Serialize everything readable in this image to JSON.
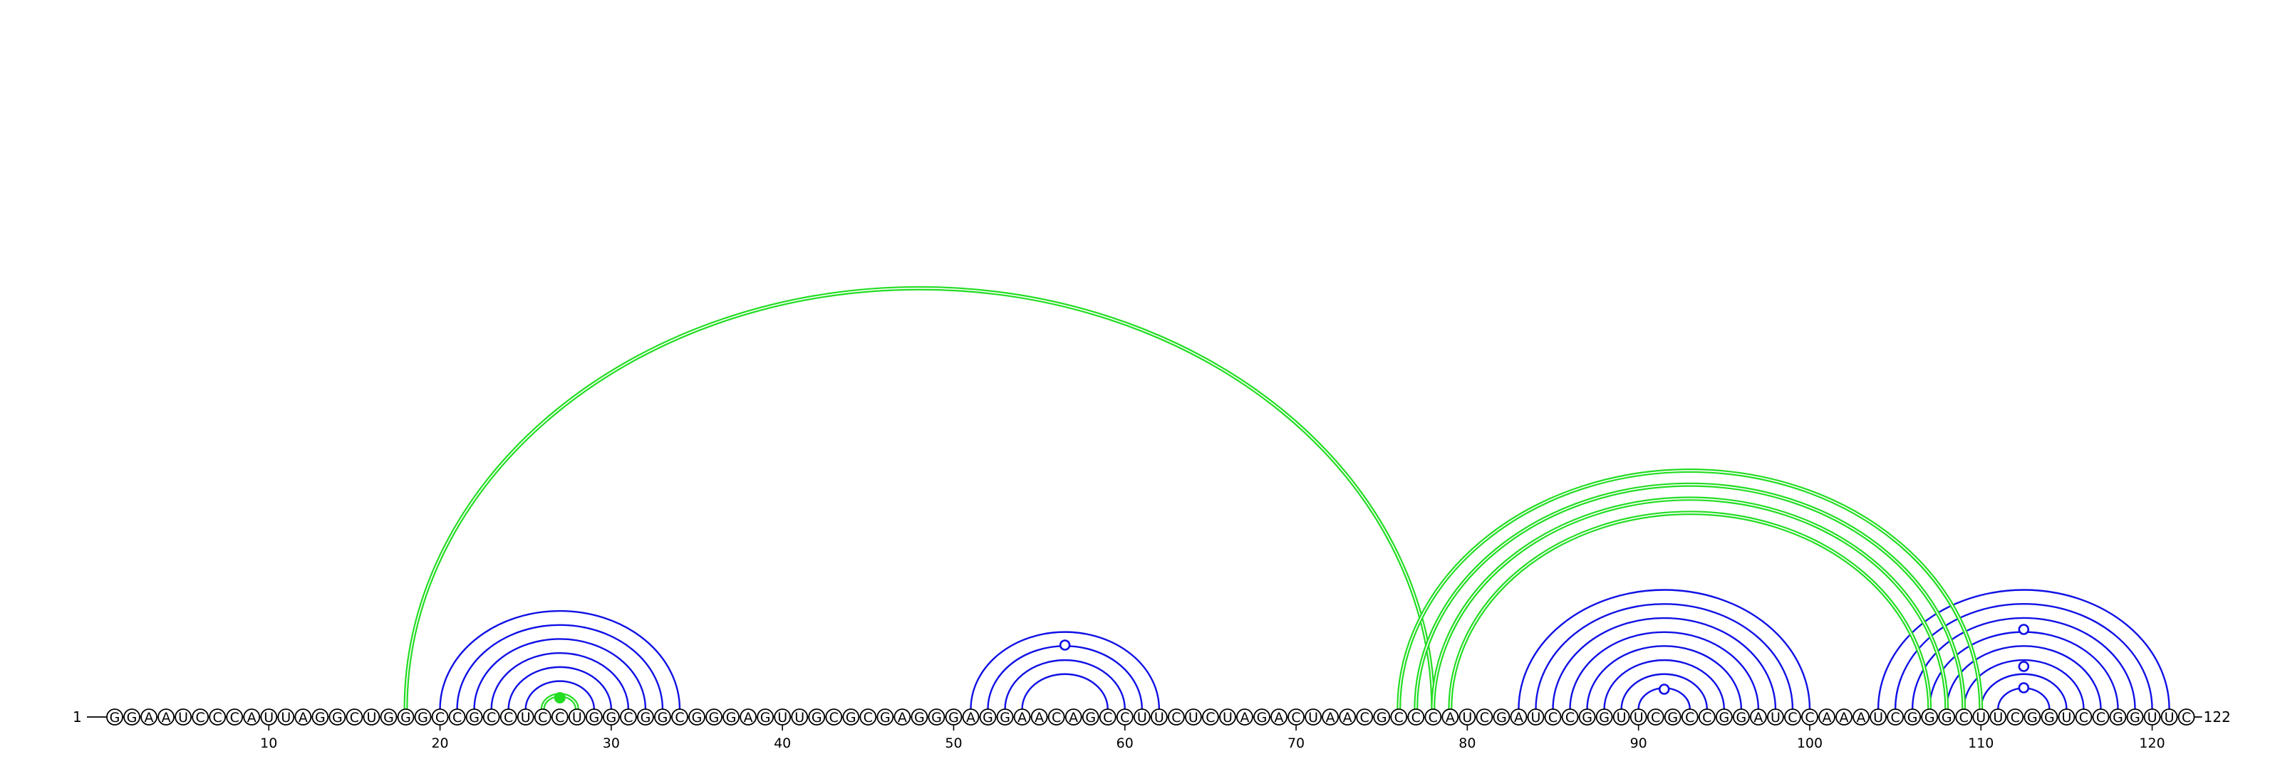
{
  "sequence": "GGAAUCCCAUUAGGCUGGGCCGCCUCCUGGCGGCGGGAGUUGCGCGAGGGAGGAACAGCCUUCUCUAGACUAACGCCCAUCGAUCCGGUUCGCCGGAUCCAAAUCGGGCUUCGGUCCGGUUC",
  "start_label": "1",
  "end_label": "122",
  "ticks": [
    10,
    20,
    30,
    40,
    50,
    60,
    70,
    80,
    90,
    100,
    110,
    120
  ],
  "colors": {
    "pairs": "#1010e6",
    "highlight": "#22dd22"
  },
  "pairs_blue": [
    [
      20,
      34
    ],
    [
      21,
      33
    ],
    [
      22,
      32
    ],
    [
      23,
      31
    ],
    [
      24,
      30
    ],
    [
      25,
      29
    ],
    [
      51,
      62
    ],
    [
      52,
      61
    ],
    [
      53,
      60
    ],
    [
      54,
      59
    ],
    [
      83,
      100
    ],
    [
      84,
      99
    ],
    [
      85,
      98
    ],
    [
      86,
      97
    ],
    [
      87,
      96
    ],
    [
      88,
      95
    ],
    [
      89,
      94
    ],
    [
      90,
      93
    ],
    [
      104,
      121
    ],
    [
      105,
      120
    ],
    [
      106,
      119
    ],
    [
      107,
      118
    ],
    [
      108,
      117
    ],
    [
      109,
      116
    ],
    [
      110,
      115
    ],
    [
      111,
      114
    ]
  ],
  "pairs_green": [
    [
      18,
      78
    ],
    [
      26,
      28
    ],
    [
      76,
      110
    ],
    [
      77,
      109
    ],
    [
      78,
      108
    ],
    [
      79,
      107
    ]
  ],
  "markers_open": [
    56.5,
    91.5,
    112.5,
    112.5,
    112.5
  ],
  "marker_open_heights": [
    90,
    28,
    30,
    60,
    112
  ],
  "markers_filled": [
    27
  ]
}
